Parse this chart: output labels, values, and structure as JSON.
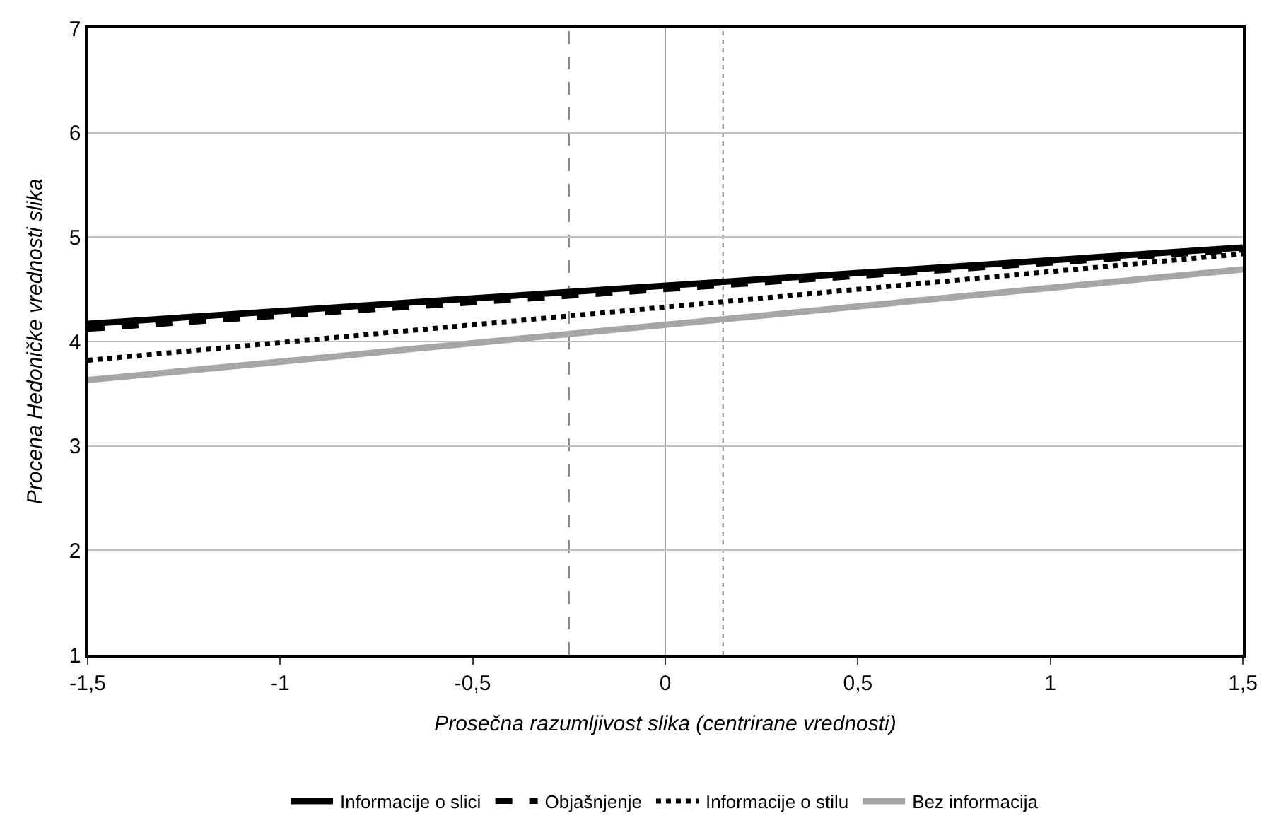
{
  "chart_data": {
    "type": "line",
    "xlabel": "Prosečna razumljivost slika (centrirane vrednosti)",
    "ylabel": "Procena Hedoničke vrednosti slika",
    "x": [
      -1.5,
      1.5
    ],
    "series": [
      {
        "name": "Informacije o slici",
        "color": "#000000",
        "line_style": "solid",
        "values": [
          4.17,
          4.9
        ]
      },
      {
        "name": "Objašnjenje",
        "color": "#000000",
        "line_style": "dashed",
        "values": [
          4.12,
          4.88
        ]
      },
      {
        "name": "Informacije o stilu",
        "color": "#000000",
        "line_style": "dotted",
        "values": [
          3.82,
          4.84
        ]
      },
      {
        "name": "Bez informacija",
        "color": "#a6a6a6",
        "line_style": "solid",
        "values": [
          3.63,
          4.69
        ]
      }
    ],
    "xlim": [
      -1.5,
      1.5
    ],
    "xticks": [
      {
        "value": -1.5,
        "label": "-1,5"
      },
      -1,
      {
        "value": -0.5,
        "label": "-0,5"
      },
      0,
      {
        "value": 0.5,
        "label": "0,5"
      },
      1,
      {
        "value": 1.5,
        "label": "1,5"
      }
    ],
    "ylim": [
      1,
      7
    ],
    "yticks": [
      1,
      2,
      3,
      4,
      5,
      6,
      7
    ],
    "ref_lines": [
      {
        "axis": "x",
        "value": -0.25,
        "color": "#808080",
        "line_style": "dashed"
      },
      {
        "axis": "x",
        "value": 0,
        "color": "#a6a6a6",
        "line_style": "solid"
      },
      {
        "axis": "x",
        "value": 0.15,
        "color": "#808080",
        "line_style": "dotted"
      }
    ],
    "grid": "y",
    "legend": "bottom",
    "marker": "none"
  }
}
